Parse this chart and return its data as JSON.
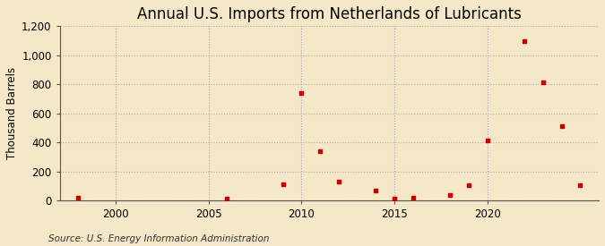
{
  "title": "Annual U.S. Imports from Netherlands of Lubricants",
  "ylabel": "Thousand Barrels",
  "source": "Source: U.S. Energy Information Administration",
  "background_color": "#f5e8c8",
  "plot_bg_color": "#f5e8c8",
  "grid_color": "#aaaaaa",
  "marker_color": "#cc0000",
  "years": [
    1998,
    2006,
    2009,
    2010,
    2011,
    2012,
    2014,
    2015,
    2016,
    2018,
    2019,
    2020,
    2022,
    2023,
    2024,
    2025
  ],
  "values": [
    20,
    10,
    110,
    740,
    340,
    130,
    65,
    10,
    20,
    40,
    105,
    415,
    1095,
    815,
    510,
    105
  ],
  "xlim": [
    1997,
    2026
  ],
  "ylim": [
    0,
    1200
  ],
  "yticks": [
    0,
    200,
    400,
    600,
    800,
    1000,
    1200
  ],
  "xticks": [
    2000,
    2005,
    2010,
    2015,
    2020
  ],
  "title_fontsize": 12,
  "label_fontsize": 8.5,
  "tick_fontsize": 8.5,
  "source_fontsize": 7.5
}
